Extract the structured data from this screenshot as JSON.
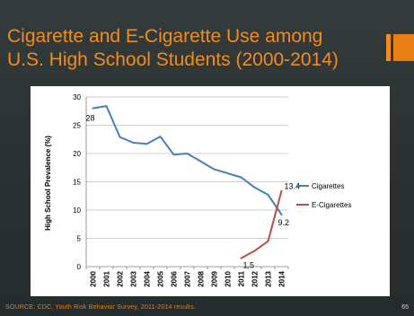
{
  "slide": {
    "title_line1": "Cigarette and E-Cigarette Use among",
    "title_line2": "U.S. High School Students (2000-2014)",
    "source": "SOURCE: CDC, Youth Risk Behavior Survey, 2011-2014 results.",
    "page_number": "65",
    "colors": {
      "title": "#f28c1e",
      "background": "#2e3434"
    }
  },
  "chart_data": {
    "type": "line",
    "title": "",
    "xlabel": "",
    "ylabel": "High School Prevalence (%)",
    "ylim": [
      0,
      30
    ],
    "yticks": [
      0,
      5,
      10,
      15,
      20,
      25,
      30
    ],
    "categories": [
      "2000",
      "2001",
      "2002",
      "2003",
      "2004",
      "2005",
      "2006",
      "2007",
      "2008",
      "2009",
      "2010",
      "2011",
      "2012",
      "2013",
      "2014"
    ],
    "grid": true,
    "legend_position": "right",
    "series": [
      {
        "name": "Cigarettes",
        "color": "#4a7ebb",
        "values": [
          28.0,
          28.4,
          22.9,
          21.9,
          21.7,
          23.0,
          19.8,
          20.0,
          18.6,
          17.2,
          16.5,
          15.8,
          14.0,
          12.7,
          9.2
        ]
      },
      {
        "name": "E-Cigarettes",
        "color": "#be4b48",
        "values": [
          null,
          null,
          null,
          null,
          null,
          null,
          null,
          null,
          null,
          null,
          null,
          1.5,
          2.8,
          4.5,
          13.4
        ]
      }
    ],
    "data_labels": [
      {
        "series": 0,
        "index": 0,
        "text": "28"
      },
      {
        "series": 0,
        "index": 14,
        "text": "9.2"
      },
      {
        "series": 1,
        "index": 11,
        "text": "1.5"
      },
      {
        "series": 1,
        "index": 14,
        "text": "13.4"
      }
    ]
  }
}
